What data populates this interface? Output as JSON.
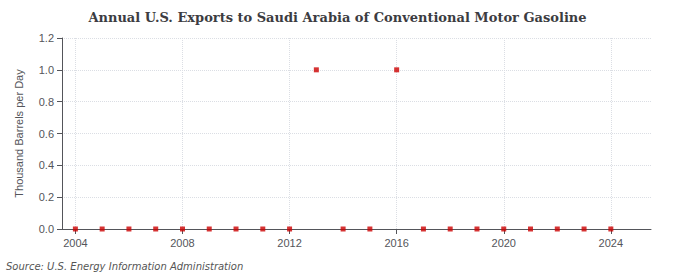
{
  "chart_data": {
    "type": "scatter",
    "title": "Annual U.S. Exports to Saudi Arabia of Conventional Motor Gasoline",
    "ylabel": "Thousand Barrels per Day",
    "annotation": "Source: U.S. Energy Information Administration",
    "x": [
      2004,
      2005,
      2006,
      2007,
      2008,
      2009,
      2010,
      2011,
      2012,
      2013,
      2014,
      2015,
      2016,
      2017,
      2018,
      2019,
      2020,
      2021,
      2022,
      2023,
      2024
    ],
    "values": [
      0.0,
      0.0,
      0.0,
      0.0,
      0.0,
      0.0,
      0.0,
      0.0,
      0.0,
      1.0,
      0.0,
      0.0,
      1.0,
      0.0,
      0.0,
      0.0,
      0.0,
      0.0,
      0.0,
      0.0,
      0.0
    ],
    "color": "#cc0000",
    "marker": "square",
    "xlim": [
      2003.5,
      2025.5
    ],
    "xticks": [
      2004,
      2008,
      2012,
      2016,
      2020,
      2024
    ],
    "ylim": [
      0.0,
      1.2
    ],
    "yticks": [
      {
        "value": 0,
        "label": "0.0"
      },
      0.2,
      0.4,
      0.6,
      0.8,
      {
        "value": 1,
        "label": "1.0"
      },
      1.2
    ],
    "grid": true
  }
}
